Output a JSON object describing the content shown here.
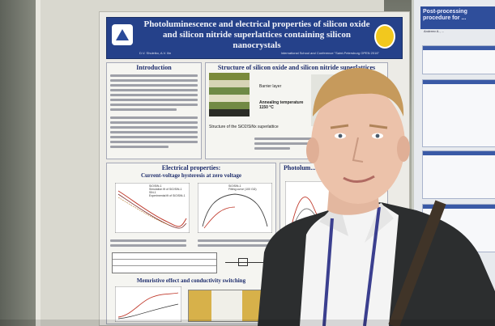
{
  "poster": {
    "title": "Photoluminescence and electrical properties of silicon oxide and silicon nitride superlattices containing silicon nanocrystals",
    "authors": "D.V. Shuleiko, A.V. Ilin",
    "conference": "International School and Conference \"Saint-Petersburg OPEN 2016\"",
    "sections": {
      "introduction": "Introduction",
      "structure": "Structure of silicon oxide and silicon nitride superlattices",
      "structure_caption": "Structure of the SiO2/SiNx superlattice",
      "barrier_label": "Barrier layer",
      "annealing_label": "Annealing temperature 1150 °C",
      "electrical": "Electrical properties:",
      "iv_title": "Current-voltage hysteresis at zero voltage",
      "memristive": "Memristive effect and conductivity switching",
      "photolum": "Photolum... quantu..."
    },
    "legend": {
      "left": [
        "SiO/SiN-1",
        "Simulation fit of SiO/SiN-1",
        "SiN-1",
        "Experimental fit of SiO/SiN-1"
      ],
      "right": [
        "SiO/SiN-1",
        "Fitting curve (100 GΩ)"
      ]
    }
  },
  "right_poster": {
    "title": "Post-processing procedure for ...",
    "subtitle": "Andreev A., ..."
  },
  "colors": {
    "poster_header": "#25418a",
    "tie_strap": "#3b3f8f",
    "jacket": "#2c2e2f",
    "shirt": "#f4f4f4"
  }
}
